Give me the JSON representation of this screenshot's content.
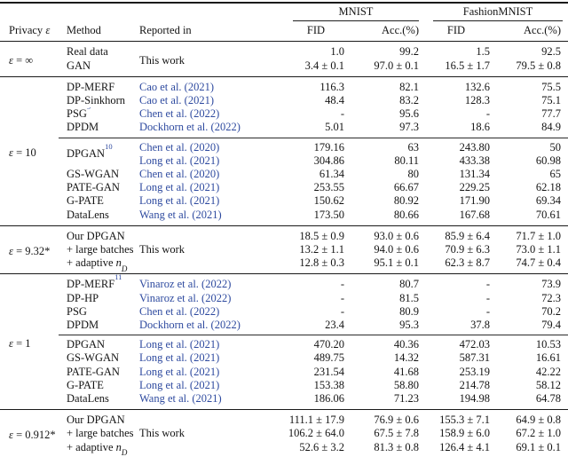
{
  "colors": {
    "text": "#141414",
    "rule": "#1a1a1a",
    "citation_blue": "#2e4a9f"
  },
  "table": {
    "header": {
      "groups": [
        "MNIST",
        "FashionMNIST"
      ],
      "columns": [
        "Privacy ε",
        "Method",
        "Reported in",
        "FID",
        "Acc.(%)",
        "FID",
        "Acc.(%)"
      ]
    },
    "groups": [
      {
        "privacy": "ε = ∞",
        "blocks": [
          [
            {
              "method": "Real data",
              "reported": "This work",
              "reported_rowspan": 2,
              "cite": false,
              "values": [
                "1.0",
                "99.2",
                "1.5",
                "92.5"
              ]
            },
            {
              "method": "GAN",
              "values": [
                "3.4 ± 0.1",
                "97.0 ± 0.1",
                "16.5 ± 1.7",
                "79.5 ± 0.8"
              ]
            }
          ]
        ]
      },
      {
        "privacy": "ε = 10",
        "blocks": [
          [
            {
              "method": "DP-MERF",
              "reported": "Cao et al. (2021)",
              "cite": true,
              "values": [
                "116.3",
                "82.1",
                "132.6",
                "75.5"
              ]
            },
            {
              "method": "DP-Sinkhorn",
              "reported": "Cao et al. (2021)",
              "cite": true,
              "values": [
                "48.4",
                "83.2",
                "128.3",
                "75.1"
              ]
            },
            {
              "method": "PSG",
              "method_sup": "9",
              "reported": "Chen et al. (2022)",
              "cite": true,
              "values": [
                "-",
                "95.6",
                "-",
                "77.7"
              ]
            },
            {
              "method": "DPDM",
              "reported": "Dockhorn et al. (2022)",
              "cite": true,
              "values": [
                "5.01",
                "97.3",
                "18.6",
                "84.9"
              ]
            }
          ],
          [
            {
              "method": "DPGAN",
              "method_sup": "10",
              "method_rowspan": 2,
              "reported": "Chen et al. (2020)",
              "cite": true,
              "values": [
                "179.16",
                "63",
                "243.80",
                "50"
              ]
            },
            {
              "reported": "Long et al. (2021)",
              "cite": true,
              "values": [
                "304.86",
                "80.11",
                "433.38",
                "60.98"
              ]
            },
            {
              "method": "GS-WGAN",
              "reported": "Chen et al. (2020)",
              "cite": true,
              "values": [
                "61.34",
                "80",
                "131.34",
                "65"
              ]
            },
            {
              "method": "PATE-GAN",
              "reported": "Long et al. (2021)",
              "cite": true,
              "values": [
                "253.55",
                "66.67",
                "229.25",
                "62.18"
              ]
            },
            {
              "method": "G-PATE",
              "reported": "Long et al. (2021)",
              "cite": true,
              "values": [
                "150.62",
                "80.92",
                "171.90",
                "69.34"
              ]
            },
            {
              "method": "DataLens",
              "reported": "Wang et al. (2021)",
              "cite": true,
              "values": [
                "173.50",
                "80.66",
                "167.68",
                "70.61"
              ]
            }
          ]
        ]
      },
      {
        "privacy": "ε = 9.32*",
        "blocks": [
          [
            {
              "method": "Our DPGAN",
              "values": [
                "18.5 ± 0.9",
                "93.0 ± 0.6",
                "85.9 ± 6.4",
                "71.7 ± 1.0"
              ]
            },
            {
              "method": "+ large batches",
              "reported": "This work",
              "cite": false,
              "values": [
                "13.2 ± 1.1",
                "94.0 ± 0.6",
                "70.9 ± 6.3",
                "73.0 ± 1.1"
              ]
            },
            {
              "method": "+ adaptive n",
              "method_sub": "D",
              "values": [
                "12.8 ± 0.3",
                "95.1 ± 0.1",
                "62.3 ± 8.7",
                "74.7 ± 0.4"
              ]
            }
          ]
        ]
      },
      {
        "privacy": "ε = 1",
        "blocks": [
          [
            {
              "method": "DP-MERF",
              "method_sup": "11",
              "reported": "Vinaroz et al. (2022)",
              "cite": true,
              "values": [
                "-",
                "80.7",
                "-",
                "73.9"
              ]
            },
            {
              "method": "DP-HP",
              "reported": "Vinaroz et al. (2022)",
              "cite": true,
              "values": [
                "-",
                "81.5",
                "-",
                "72.3"
              ]
            },
            {
              "method": "PSG",
              "reported": "Chen et al. (2022)",
              "cite": true,
              "values": [
                "-",
                "80.9",
                "-",
                "70.2"
              ]
            },
            {
              "method": "DPDM",
              "reported": "Dockhorn et al. (2022)",
              "cite": true,
              "values": [
                "23.4",
                "95.3",
                "37.8",
                "79.4"
              ]
            }
          ],
          [
            {
              "method": "DPGAN",
              "reported": "Long et al. (2021)",
              "cite": true,
              "values": [
                "470.20",
                "40.36",
                "472.03",
                "10.53"
              ]
            },
            {
              "method": "GS-WGAN",
              "reported": "Long et al. (2021)",
              "cite": true,
              "values": [
                "489.75",
                "14.32",
                "587.31",
                "16.61"
              ]
            },
            {
              "method": "PATE-GAN",
              "reported": "Long et al. (2021)",
              "cite": true,
              "values": [
                "231.54",
                "41.68",
                "253.19",
                "42.22"
              ]
            },
            {
              "method": "G-PATE",
              "reported": "Long et al. (2021)",
              "cite": true,
              "values": [
                "153.38",
                "58.80",
                "214.78",
                "58.12"
              ]
            },
            {
              "method": "DataLens",
              "reported": "Wang et al. (2021)",
              "cite": true,
              "values": [
                "186.06",
                "71.23",
                "194.98",
                "64.78"
              ]
            }
          ]
        ]
      },
      {
        "privacy": "ε = 0.912*",
        "blocks": [
          [
            {
              "method": "Our DPGAN",
              "values": [
                "111.1 ± 17.9",
                "76.9 ± 0.6",
                "155.3 ± 7.1",
                "64.9 ± 0.8"
              ]
            },
            {
              "method": "+ large batches",
              "reported": "This work",
              "cite": false,
              "values": [
                "106.2 ± 64.0",
                "67.5 ± 7.8",
                "158.9 ± 6.0",
                "67.2 ± 1.0"
              ]
            },
            {
              "method": "+ adaptive n",
              "method_sub": "D",
              "values": [
                "52.6 ± 3.2",
                "81.3 ± 0.8",
                "126.4 ± 4.1",
                "69.1 ± 0.1"
              ]
            }
          ]
        ]
      }
    ]
  }
}
